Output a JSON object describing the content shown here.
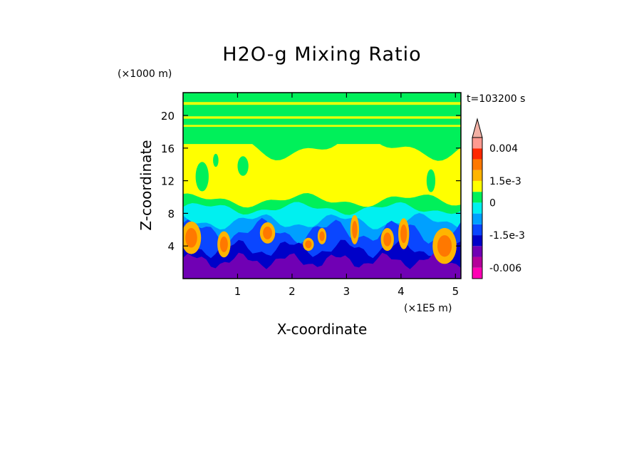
{
  "chart_data": {
    "type": "heatmap",
    "title": "H2O-g Mixing Ratio",
    "xlabel": "X-coordinate",
    "ylabel": "Z-coordinate",
    "x_unit": "(×1E5 m)",
    "y_unit": "(×1000 m)",
    "time_label": "t=103200 s",
    "xlim": [
      0,
      5.1
    ],
    "ylim": [
      0,
      22.8
    ],
    "x_ticks": [
      "1",
      "2",
      "3",
      "4",
      "5"
    ],
    "y_ticks": [
      "4",
      "8",
      "12",
      "16",
      "20"
    ],
    "colorbar": {
      "levels": [
        {
          "color": "#ff00b4"
        },
        {
          "color": "#b4009a"
        },
        {
          "color": "#7000b4"
        },
        {
          "color": "#0000c8"
        },
        {
          "color": "#0a46ff"
        },
        {
          "color": "#00a0ff"
        },
        {
          "color": "#00f0f0"
        },
        {
          "color": "#00f05a"
        },
        {
          "color": "#ffff00"
        },
        {
          "color": "#ffb400"
        },
        {
          "color": "#ff7800"
        },
        {
          "color": "#ff2800"
        },
        {
          "color": "#ff9a90"
        },
        {
          "color": "#f2b0a4"
        }
      ],
      "labels": [
        "0.004",
        "1.5e-3",
        "0",
        "-1.5e-3",
        "-0.006"
      ]
    }
  }
}
